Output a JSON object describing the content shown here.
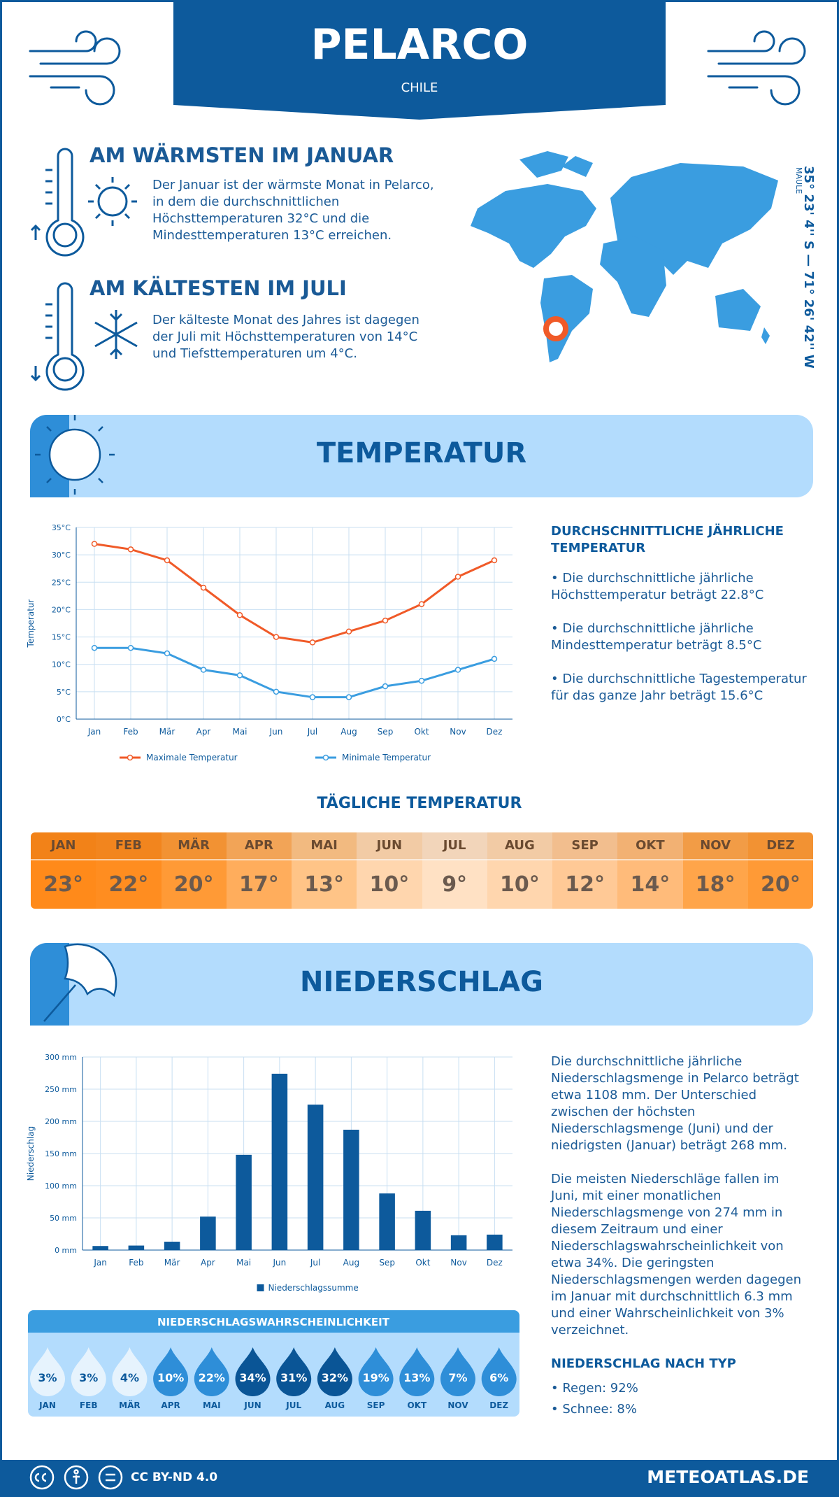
{
  "header": {
    "title": "PELARCO",
    "subtitle": "CHILE"
  },
  "warmest": {
    "heading": "AM WÄRMSTEN IM JANUAR",
    "text": "Der Januar ist der wärmste Monat in Pelarco, in dem die durchschnittlichen Höchsttemperaturen 32°C und die Mindesttemperaturen 13°C erreichen."
  },
  "coldest": {
    "heading": "AM KÄLTESTEN IM JULI",
    "text": "Der kälteste Monat des Jahres ist dagegen der Juli mit Höchsttemperaturen von 14°C und Tiefsttemperaturen um 4°C."
  },
  "location": {
    "coordinates": "35° 23' 4'' S — 71° 26' 42'' W",
    "region": "MAULE"
  },
  "temperature_section": {
    "title": "TEMPERATUR",
    "summary_heading": "DURCHSCHNITTLICHE JÄHRLICHE TEMPERATUR",
    "bullets": [
      "• Die durchschnittliche jährliche Höchsttemperatur beträgt 22.8°C",
      "• Die durchschnittliche jährliche Mindesttemperatur beträgt 8.5°C",
      "• Die durchschnittliche Tagestemperatur für das ganze Jahr beträgt 15.6°C"
    ]
  },
  "chart_data": [
    {
      "type": "line",
      "ylabel": "Temperatur",
      "categories": [
        "Jan",
        "Feb",
        "Mär",
        "Apr",
        "Mai",
        "Jun",
        "Jul",
        "Aug",
        "Sep",
        "Okt",
        "Nov",
        "Dez"
      ],
      "series": [
        {
          "name": "Maximale Temperatur",
          "color": "#f05a28",
          "values": [
            32,
            31,
            29,
            24,
            19,
            15,
            14,
            16,
            18,
            21,
            26,
            29
          ]
        },
        {
          "name": "Minimale Temperatur",
          "color": "#3a9de0",
          "values": [
            13,
            13,
            12,
            9,
            8,
            5,
            4,
            4,
            6,
            7,
            9,
            11
          ]
        }
      ],
      "ylim": [
        0,
        35
      ],
      "yticks": [
        {
          "value": 0,
          "label": "0°C"
        },
        {
          "value": 5,
          "label": "5°C"
        },
        {
          "value": 10,
          "label": "10°C"
        },
        {
          "value": 15,
          "label": "15°C"
        },
        {
          "value": 20,
          "label": "20°C"
        },
        {
          "value": 25,
          "label": "25°C"
        },
        {
          "value": 30,
          "label": "30°C"
        },
        {
          "value": 35,
          "label": "35°C"
        }
      ],
      "grid": true,
      "legend": "bottom"
    },
    {
      "type": "bar",
      "ylabel": "Niederschlag",
      "categories": [
        "Jan",
        "Feb",
        "Mär",
        "Apr",
        "Mai",
        "Jun",
        "Jul",
        "Aug",
        "Sep",
        "Okt",
        "Nov",
        "Dez"
      ],
      "series": [
        {
          "name": "Niederschlagssumme",
          "color": "#0d5a9c",
          "values": [
            6.3,
            7,
            13,
            52,
            148,
            274,
            226,
            187,
            88,
            61,
            23,
            24
          ]
        }
      ],
      "ylim": [
        0,
        300
      ],
      "yticks": [
        {
          "value": 0,
          "label": "0 mm"
        },
        {
          "value": 50,
          "label": "50 mm"
        },
        {
          "value": 100,
          "label": "100 mm"
        },
        {
          "value": 150,
          "label": "150 mm"
        },
        {
          "value": 200,
          "label": "200 mm"
        },
        {
          "value": 250,
          "label": "250 mm"
        },
        {
          "value": 300,
          "label": "300 mm"
        }
      ],
      "grid": true,
      "legend": "bottom"
    },
    {
      "type": "drops",
      "title": "NIEDERSCHLAGSWAHRSCHEINLICHKEIT",
      "categories": [
        "JAN",
        "FEB",
        "MÄR",
        "APR",
        "MAI",
        "JUN",
        "JUL",
        "AUG",
        "SEP",
        "OKT",
        "NOV",
        "DEZ"
      ],
      "values": [
        3,
        3,
        4,
        10,
        22,
        34,
        31,
        32,
        19,
        13,
        7,
        6
      ],
      "value_labels": [
        "3%",
        "3%",
        "4%",
        "10%",
        "22%",
        "34%",
        "31%",
        "32%",
        "19%",
        "13%",
        "7%",
        "6%"
      ],
      "colors": [
        "#e6f3fd",
        "#e6f3fd",
        "#e6f3fd",
        "#2e8ed8",
        "#2e8ed8",
        "#0a5596",
        "#0a5596",
        "#0a5596",
        "#2e8ed8",
        "#2e8ed8",
        "#2e8ed8",
        "#2e8ed8"
      ]
    }
  ],
  "daily_temperature": {
    "title": "TÄGLICHE TEMPERATUR",
    "months": [
      "JAN",
      "FEB",
      "MÄR",
      "APR",
      "MAI",
      "JUN",
      "JUL",
      "AUG",
      "SEP",
      "OKT",
      "NOV",
      "DEZ"
    ],
    "values": [
      "23°",
      "22°",
      "20°",
      "17°",
      "13°",
      "10°",
      "9°",
      "10°",
      "12°",
      "14°",
      "18°",
      "20°"
    ],
    "colors": [
      "#ff8a1a",
      "#ff8d20",
      "#ff9a36",
      "#ffad5c",
      "#ffc487",
      "#ffd6ae",
      "#ffe1c4",
      "#ffd6ae",
      "#ffc996",
      "#ffbb7a",
      "#ffa54a",
      "#ff9a36"
    ]
  },
  "precipitation_section": {
    "title": "NIEDERSCHLAG",
    "paragraphs": [
      "Die durchschnittliche jährliche Niederschlagsmenge in Pelarco beträgt etwa 1108 mm. Der Unterschied zwischen der höchsten Niederschlagsmenge (Juni) und der niedrigsten (Januar) beträgt 268 mm.",
      "Die meisten Niederschläge fallen im Juni, mit einer monatlichen Niederschlagsmenge von 274 mm in diesem Zeitraum und einer Niederschlagswahrscheinlichkeit von etwa 34%. Die geringsten Niederschlagsmengen werden dagegen im Januar mit durchschnittlich 6.3 mm und einer Wahrscheinlichkeit von 3% verzeichnet."
    ],
    "type_heading": "NIEDERSCHLAG NACH TYP",
    "type_bullets": [
      "• Regen: 92%",
      "• Schnee: 8%"
    ]
  },
  "footer": {
    "license": "CC BY-ND 4.0",
    "site": "METEOATLAS.DE"
  }
}
